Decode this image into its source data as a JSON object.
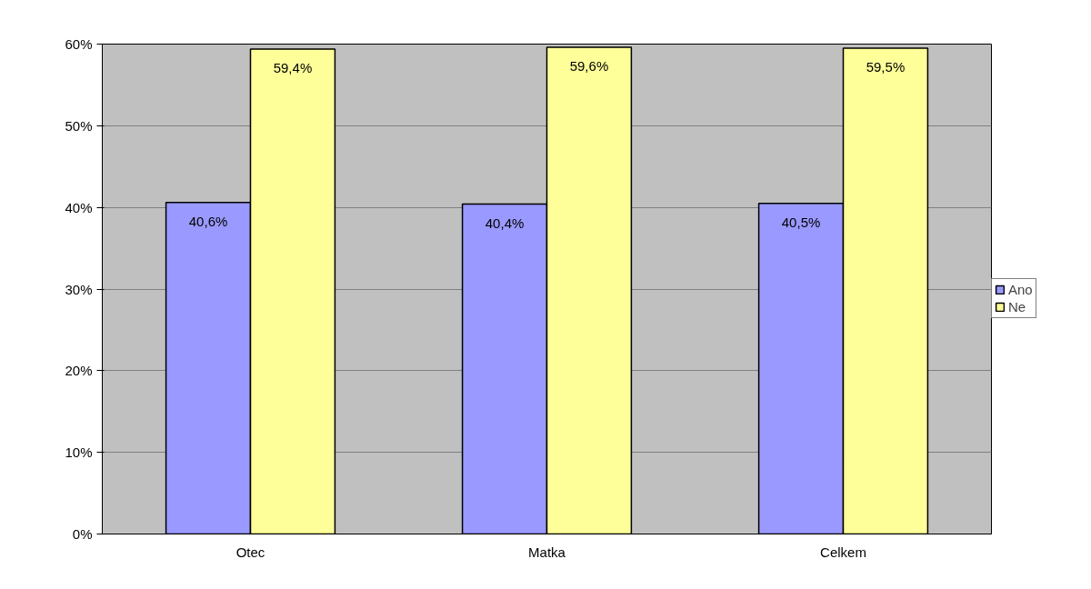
{
  "chart_data": {
    "type": "bar",
    "categories": [
      "Otec",
      "Matka",
      "Celkem"
    ],
    "series": [
      {
        "name": "Ano",
        "color": "#9999ff",
        "values": [
          40.6,
          40.4,
          40.5
        ],
        "value_labels": [
          "40,6%",
          "40,4%",
          "40,5%"
        ]
      },
      {
        "name": "Ne",
        "color": "#ffff99",
        "values": [
          59.4,
          59.6,
          59.5
        ],
        "value_labels": [
          "59,4%",
          "59,6%",
          "59,5%"
        ]
      }
    ],
    "ylim": [
      0,
      60
    ],
    "yticks": [
      {
        "value": 0,
        "label": "0%"
      },
      {
        "value": 10,
        "label": "10%"
      },
      {
        "value": 20,
        "label": "20%"
      },
      {
        "value": 30,
        "label": "30%"
      },
      {
        "value": 40,
        "label": "40%"
      },
      {
        "value": 50,
        "label": "50%"
      },
      {
        "value": 60,
        "label": "60%"
      }
    ],
    "grid": "y",
    "legend": "right"
  }
}
